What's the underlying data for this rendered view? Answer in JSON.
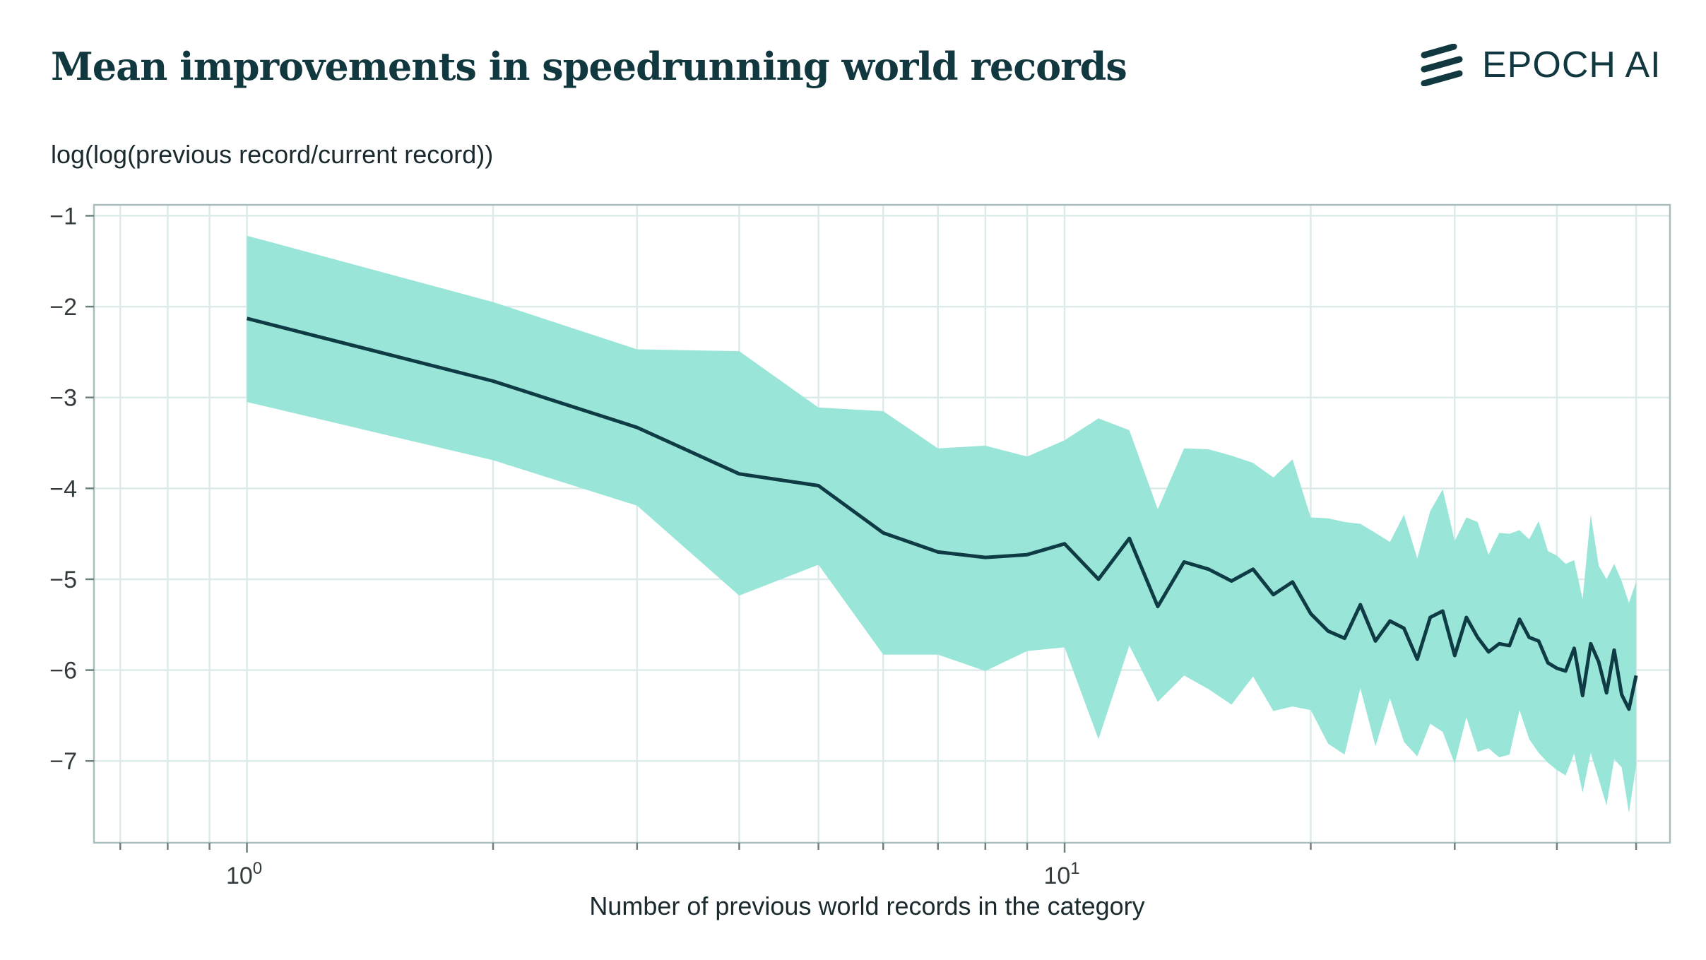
{
  "title": "Mean improvements in speedrunning world records",
  "brand": {
    "name": "EPOCH AI"
  },
  "colors": {
    "line": "#0f3b44",
    "band": "#99e6d9",
    "grid": "#dcebea",
    "frame": "#a9bdbd",
    "text": "#12383f"
  },
  "chart_data": {
    "type": "line",
    "xlabel": "Number of previous world records in the category",
    "ylabel": "log(log(previous record/current record))",
    "xscale": "log",
    "xlim": [
      0.65,
      55
    ],
    "ylim": [
      -7.9,
      -0.88
    ],
    "grid": true,
    "x_ticks": [
      {
        "base": "10",
        "exp": "0",
        "value": 1
      },
      {
        "base": "10",
        "exp": "1",
        "value": 10
      }
    ],
    "y_ticks": [
      -1,
      -2,
      -3,
      -4,
      -5,
      -6,
      -7
    ],
    "series": [
      {
        "x": [
          1,
          2,
          3,
          4,
          5,
          6,
          7,
          8,
          9,
          10,
          11,
          12,
          13,
          14,
          15,
          16,
          17,
          18,
          19,
          20,
          21,
          22,
          23,
          24,
          25,
          26,
          27,
          28,
          29,
          30,
          31,
          32,
          33,
          34,
          35,
          36,
          37,
          38,
          39,
          40,
          41,
          42,
          43,
          44,
          45,
          46,
          47,
          48,
          49,
          50
        ],
        "mean": [
          -2.13,
          -2.82,
          -3.33,
          -3.84,
          -3.97,
          -4.49,
          -4.7,
          -4.76,
          -4.73,
          -4.61,
          -5.0,
          -4.55,
          -5.3,
          -4.81,
          -4.89,
          -5.02,
          -4.89,
          -5.17,
          -5.03,
          -5.38,
          -5.57,
          -5.65,
          -5.28,
          -5.68,
          -5.46,
          -5.54,
          -5.88,
          -5.42,
          -5.35,
          -5.84,
          -5.42,
          -5.64,
          -5.8,
          -5.71,
          -5.73,
          -5.44,
          -5.64,
          -5.68,
          -5.92,
          -5.98,
          -6.01,
          -5.76,
          -6.28,
          -5.71,
          -5.91,
          -6.25,
          -5.78,
          -6.27,
          -6.43,
          -6.06
        ],
        "upper": [
          -1.22,
          -1.95,
          -2.47,
          -2.49,
          -3.11,
          -3.15,
          -3.56,
          -3.53,
          -3.65,
          -3.47,
          -3.23,
          -3.36,
          -4.23,
          -3.56,
          -3.57,
          -3.64,
          -3.72,
          -3.88,
          -3.68,
          -4.32,
          -4.33,
          -4.37,
          -4.39,
          -4.49,
          -4.59,
          -4.29,
          -4.77,
          -4.25,
          -4.01,
          -4.58,
          -4.32,
          -4.37,
          -4.73,
          -4.49,
          -4.5,
          -4.46,
          -4.56,
          -4.36,
          -4.69,
          -4.74,
          -4.83,
          -4.79,
          -5.22,
          -4.29,
          -4.85,
          -5.0,
          -4.83,
          -5.02,
          -5.26,
          -5.03
        ],
        "lower": [
          -3.05,
          -3.69,
          -4.19,
          -5.18,
          -4.84,
          -5.83,
          -5.83,
          -6.01,
          -5.79,
          -5.75,
          -6.76,
          -5.73,
          -6.35,
          -6.06,
          -6.21,
          -6.38,
          -6.07,
          -6.45,
          -6.4,
          -6.44,
          -6.81,
          -6.93,
          -6.2,
          -6.84,
          -6.31,
          -6.79,
          -6.95,
          -6.59,
          -6.68,
          -7.03,
          -6.52,
          -6.9,
          -6.86,
          -6.96,
          -6.93,
          -6.44,
          -6.76,
          -6.91,
          -7.02,
          -7.1,
          -7.16,
          -6.92,
          -7.35,
          -6.91,
          -7.2,
          -7.49,
          -6.98,
          -7.07,
          -7.57,
          -7.05
        ]
      }
    ]
  }
}
